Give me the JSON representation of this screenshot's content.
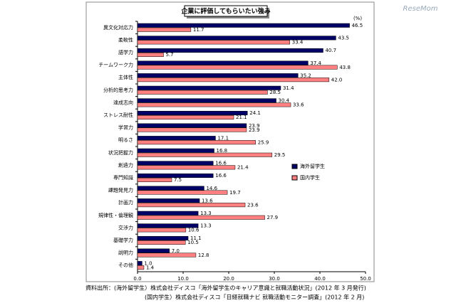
{
  "chart_data": {
    "type": "hbar",
    "title": "企業に評価してもらいたい強み",
    "unit": "(%)",
    "watermark": "ReseMom",
    "categories": [
      "異文化対応力",
      "柔軟性",
      "語学力",
      "チームワーク力",
      "主体性",
      "分析的思考力",
      "達成志向",
      "ストレス耐性",
      "学習力",
      "明るさ",
      "状況把握力",
      "創造力",
      "専門知識",
      "課題発見力",
      "計画力",
      "規律性・倫理観",
      "交渉力",
      "基礎学力",
      "説明力",
      "その他"
    ],
    "series": [
      {
        "name": "海外留学生",
        "color": "#000066",
        "values": [
          46.5,
          43.5,
          40.7,
          37.4,
          35.2,
          31.4,
          30.4,
          24.1,
          23.9,
          17.1,
          16.8,
          16.6,
          16.6,
          14.6,
          13.6,
          13.3,
          13.3,
          11.1,
          7.0,
          1.0
        ],
        "value_labels": [
          "46.5",
          "43.5",
          "40.7",
          "37.4",
          "35.2",
          "31.4",
          "30.4",
          "24.1",
          "23.9",
          "17.1",
          "16.8",
          "16.6",
          "16.6",
          "14.6",
          "13.6",
          "13.3",
          "13.3",
          "11.1",
          "7.0",
          "1.0"
        ]
      },
      {
        "name": "国内学生",
        "color": "#ff8080",
        "values": [
          11.7,
          33.4,
          5.7,
          43.8,
          42.0,
          28.5,
          33.6,
          21.1,
          23.9,
          25.9,
          29.5,
          21.4,
          7.5,
          19.7,
          23.6,
          27.9,
          10.6,
          10.5,
          12.8,
          1.4
        ],
        "value_labels": [
          "11.7",
          "33.4",
          "5.7",
          "43.8",
          "42.0",
          "28.5",
          "33.6",
          "21.1",
          "23.9",
          "25.9",
          "29.5",
          "21.4",
          "7.5",
          "19.7",
          "23.6",
          "27.9",
          "10.6",
          "10.5",
          "12.8",
          "1.4"
        ]
      }
    ],
    "xlim": [
      0,
      50
    ],
    "xticks": [
      {
        "value": 0,
        "label": "0.0"
      },
      {
        "value": 10,
        "label": "10.0"
      },
      {
        "value": 20,
        "label": "20.0"
      },
      {
        "value": 30,
        "label": "30.0"
      },
      {
        "value": 40,
        "label": "40.0"
      },
      {
        "value": 50,
        "label": "50.0"
      }
    ],
    "source": [
      "資料出所：(海外留学生）株式会社ディスコ「海外留学生のキャリア意識と就職活動状況」(2012 年 3 月発行)",
      "(国内学生）株式会社ディスコ「日経就職ナビ 就職活動モニター調査」(2012 年 2 月)"
    ]
  }
}
